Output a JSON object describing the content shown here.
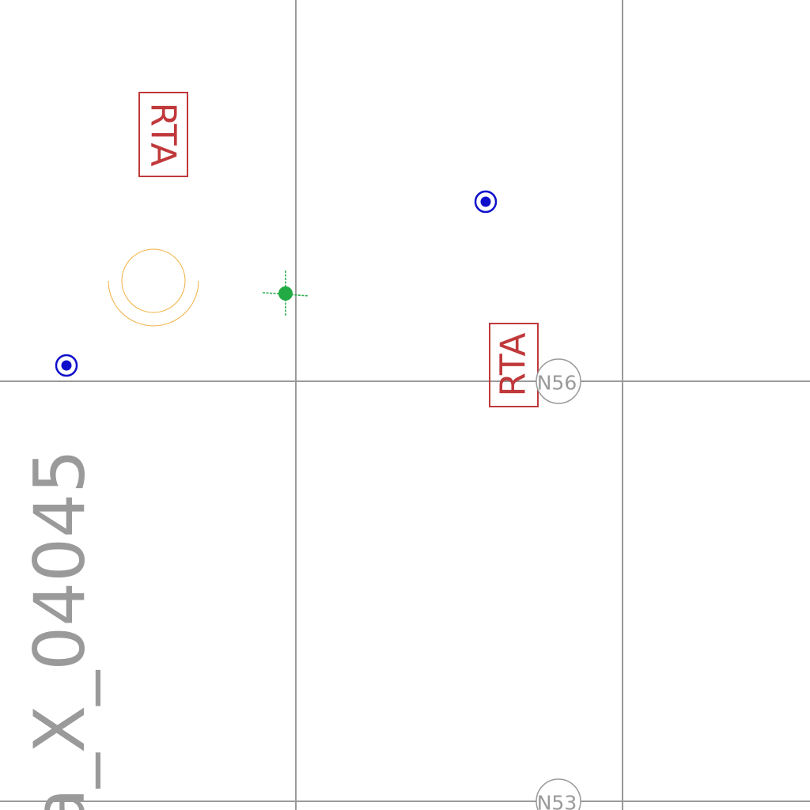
{
  "drawing": {
    "sheet_label": "a_X_04045",
    "grid_bubbles": [
      "N56",
      "N53"
    ],
    "rta_tags": [
      "RTA",
      "RTA"
    ],
    "colors": {
      "background": "#ffffff",
      "grid": "#9a9a9a",
      "rta": "#c0393b",
      "blue_marker": "#1010cc",
      "green_marker": "#22aa44",
      "fixture_arc": "#f0b040",
      "sheet_label": "#9a9a9a"
    },
    "icons": {
      "blue_marker": "target-dot-icon",
      "green_marker": "crosshair-point-icon",
      "orange_fixture": "circular-fixture-icon"
    }
  }
}
